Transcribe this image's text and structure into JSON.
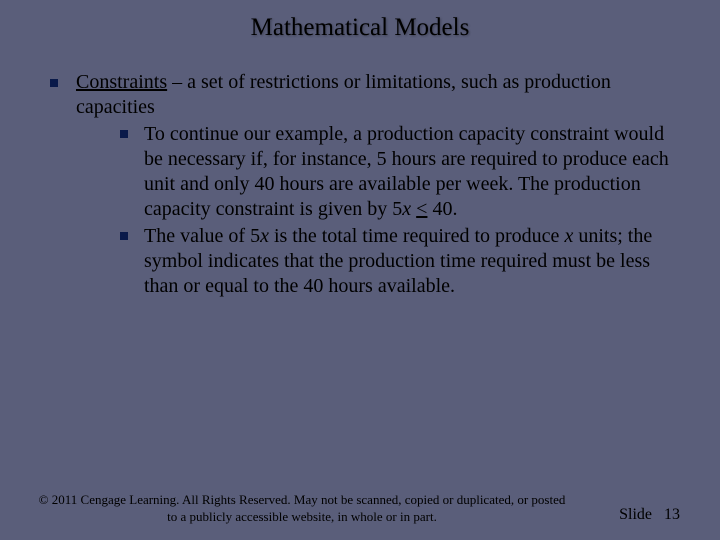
{
  "title": "Mathematical Models",
  "main": {
    "term": "Constraints",
    "def": " – a set of restrictions or limitations, such as production capacities",
    "sub1_a": "To continue our example, a production capacity constraint would be necessary if, for instance, 5 hours are required to produce each unit and only 40 hours are available per week. The production capacity constraint is given by 5",
    "sub1_x": "x",
    "sub1_b": " ",
    "sub1_le": "<",
    "sub1_c": " 40.",
    "sub2_a": "The value of 5",
    "sub2_x1": "x",
    "sub2_b": " is the total time required to produce ",
    "sub2_x2": "x",
    "sub2_c": " units; the symbol  indicates that the production time required must be less than or equal to the 40 hours available."
  },
  "footer": {
    "copyright": "© 2011  Cengage Learning.  All Rights Reserved.  May not be scanned, copied or duplicated, or posted to a publicly accessible website, in whole or in part.",
    "slide_label": "Slide",
    "slide_num": "13"
  },
  "style": {
    "bg": "#5a5e7a",
    "bullet_color": "#0a1a4a"
  }
}
